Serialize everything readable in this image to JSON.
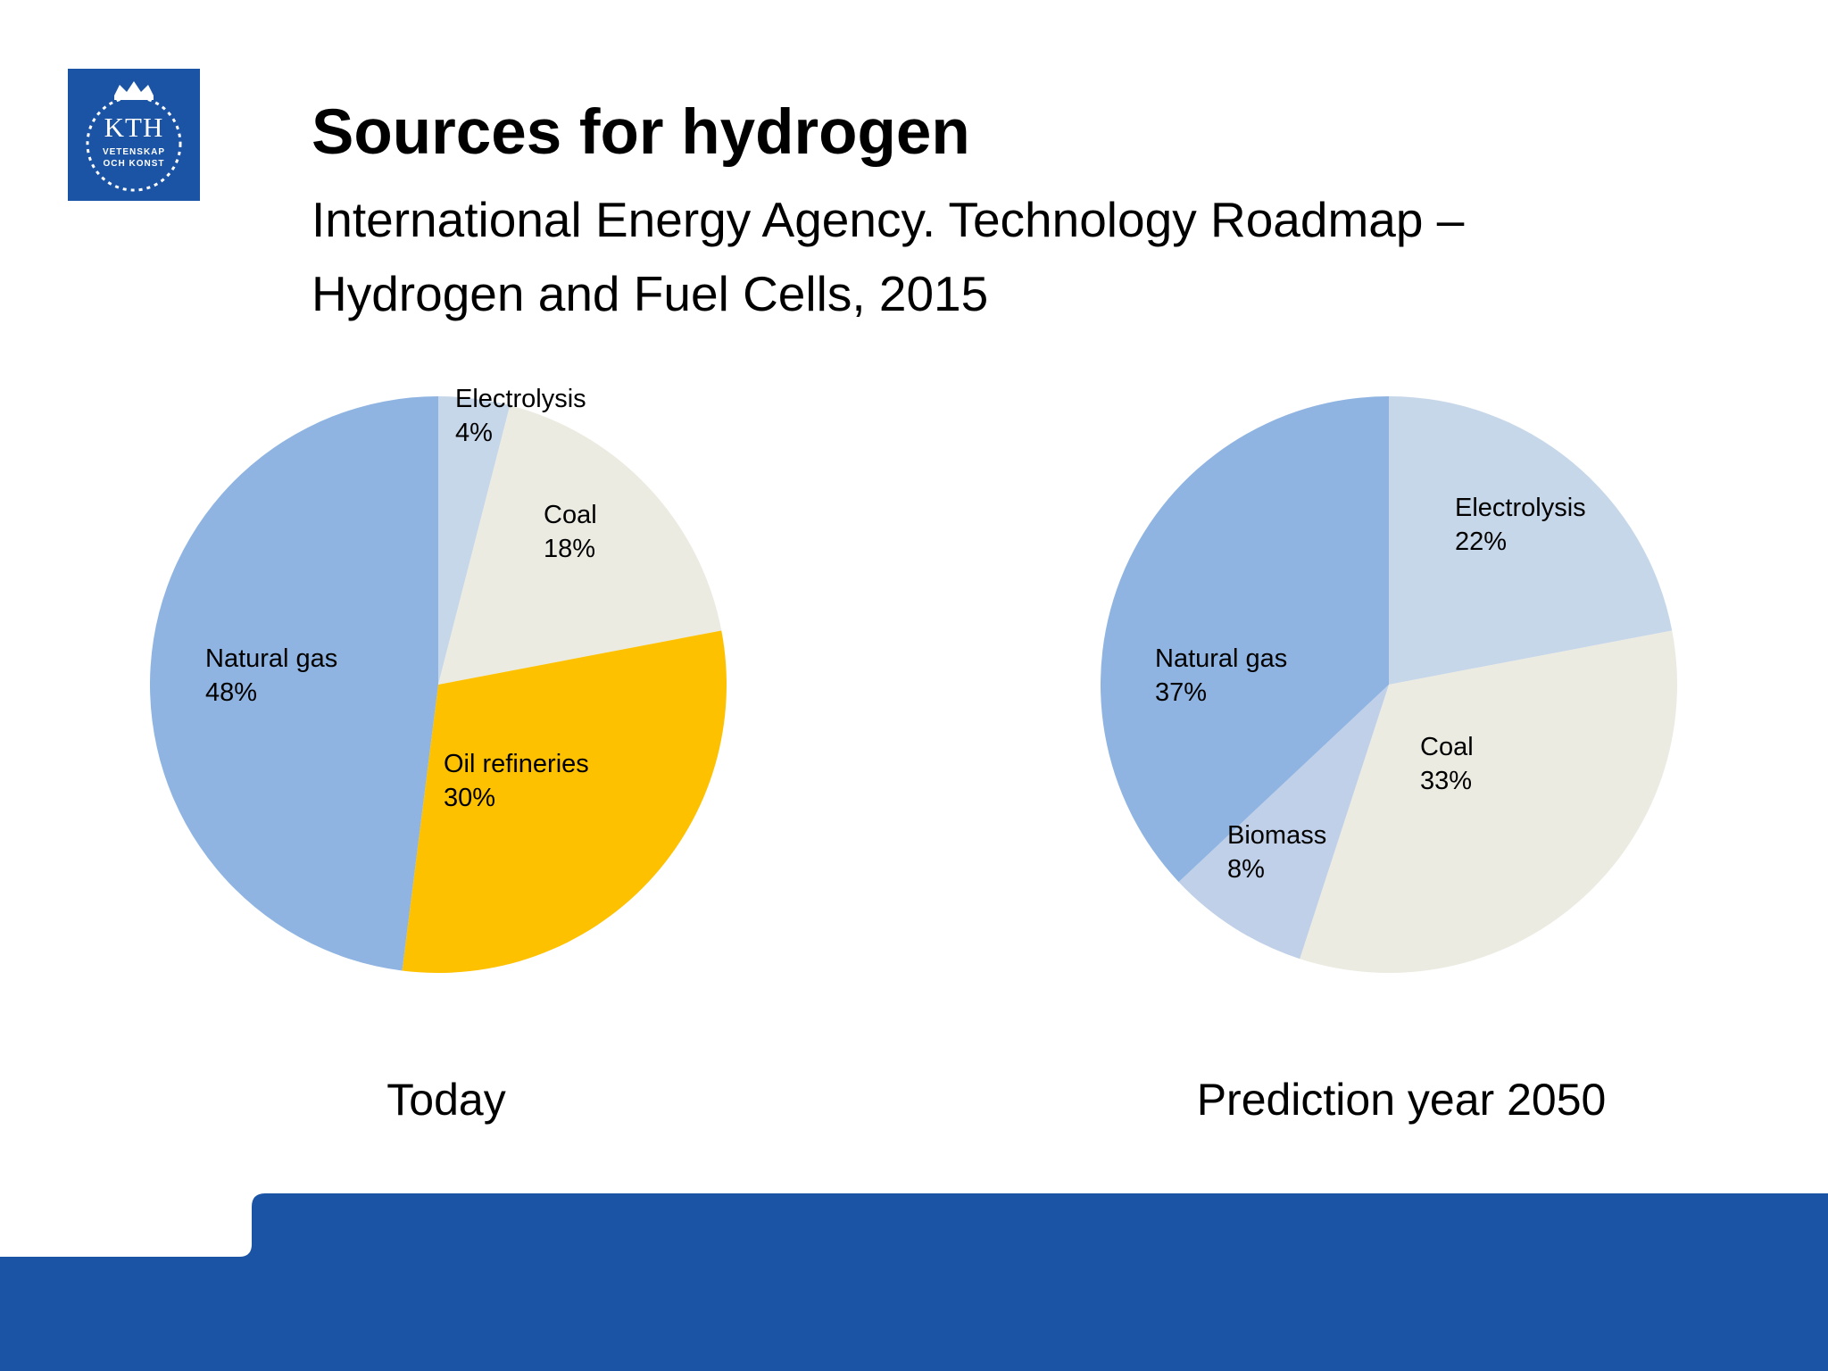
{
  "logo": {
    "main_text": "KTH",
    "sub_line1": "VETENSKAP",
    "sub_line2": "OCH KONST",
    "color": "#1b54a5"
  },
  "slide": {
    "title": "Sources for hydrogen",
    "subtitle": "International Energy Agency. Technology Roadmap – Hydrogen and Fuel Cells, 2015"
  },
  "colors": {
    "natural_gas": "#8fb4e1",
    "electrolysis": "#c7d7ea",
    "coal": "#ecebe1",
    "oil_refineries": "#fdc100",
    "biomass": "#c0d0e8",
    "footer": "#1b54a5"
  },
  "chart_data": [
    {
      "type": "pie",
      "caption": "Today",
      "slices": [
        {
          "name": "Electrolysis",
          "value": 4,
          "label": "4%",
          "color_key": "electrolysis"
        },
        {
          "name": "Coal",
          "value": 18,
          "label": "18%",
          "color_key": "coal"
        },
        {
          "name": "Oil refineries",
          "value": 30,
          "label": "30%",
          "color_key": "oil_refineries"
        },
        {
          "name": "Natural gas",
          "value": 48,
          "label": "48%",
          "color_key": "natural_gas"
        }
      ]
    },
    {
      "type": "pie",
      "caption": "Prediction year 2050",
      "slices": [
        {
          "name": "Electrolysis",
          "value": 22,
          "label": "22%",
          "color_key": "electrolysis"
        },
        {
          "name": "Coal",
          "value": 33,
          "label": "33%",
          "color_key": "coal"
        },
        {
          "name": "Biomass",
          "value": 8,
          "label": "8%",
          "color_key": "biomass"
        },
        {
          "name": "Natural gas",
          "value": 37,
          "label": "37%",
          "color_key": "natural_gas"
        }
      ]
    }
  ]
}
